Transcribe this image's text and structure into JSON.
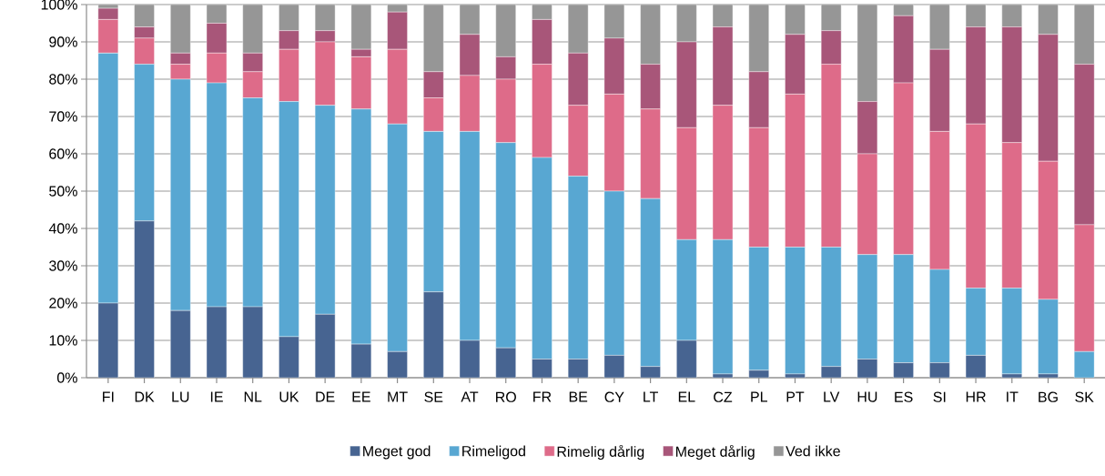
{
  "chart_data": {
    "type": "bar",
    "stacked": true,
    "grid": "y",
    "legend": "bottom",
    "categories": [
      "FI",
      "DK",
      "LU",
      "IE",
      "NL",
      "UK",
      "DE",
      "EE",
      "MT",
      "SE",
      "AT",
      "RO",
      "FR",
      "BE",
      "CY",
      "LT",
      "EL",
      "CZ",
      "PL",
      "PT",
      "LV",
      "HU",
      "ES",
      "SI",
      "HR",
      "IT",
      "BG",
      "SK"
    ],
    "ylim": [
      0,
      100
    ],
    "yticks": [
      {
        "value": 0,
        "label": "0%"
      },
      {
        "value": 10,
        "label": "10%"
      },
      {
        "value": 20,
        "label": "20%"
      },
      {
        "value": 30,
        "label": "30%"
      },
      {
        "value": 40,
        "label": "40%"
      },
      {
        "value": 50,
        "label": "50%"
      },
      {
        "value": 60,
        "label": "60%"
      },
      {
        "value": 70,
        "label": "70%"
      },
      {
        "value": 80,
        "label": "80%"
      },
      {
        "value": 90,
        "label": "90%"
      },
      {
        "value": 100,
        "label": "100%"
      }
    ],
    "series": [
      {
        "name": "Meget god",
        "color": "#476491",
        "values": [
          20,
          42,
          18,
          19,
          19,
          11,
          17,
          9,
          7,
          23,
          10,
          8,
          5,
          5,
          6,
          3,
          10,
          1,
          2,
          1,
          3,
          5,
          4,
          4,
          6,
          1,
          1,
          0
        ]
      },
      {
        "name": "Rimeligod",
        "color": "#58a7d2",
        "values": [
          67,
          42,
          62,
          60,
          56,
          63,
          56,
          63,
          61,
          43,
          56,
          55,
          54,
          49,
          44,
          45,
          27,
          36,
          33,
          34,
          32,
          28,
          29,
          25,
          18,
          23,
          20,
          7
        ]
      },
      {
        "name": "Rimelig dårlig",
        "color": "#de6b89",
        "values": [
          9,
          7,
          4,
          8,
          7,
          14,
          17,
          14,
          20,
          9,
          15,
          17,
          25,
          19,
          26,
          24,
          30,
          36,
          32,
          41,
          49,
          27,
          46,
          37,
          44,
          39,
          37,
          34
        ]
      },
      {
        "name": "Meget dårlig",
        "color": "#a85679",
        "values": [
          3,
          3,
          3,
          8,
          5,
          5,
          3,
          2,
          10,
          7,
          11,
          6,
          12,
          14,
          15,
          12,
          23,
          21,
          15,
          16,
          9,
          14,
          18,
          22,
          26,
          31,
          34,
          43
        ]
      },
      {
        "name": "Ved ikke",
        "color": "#969696",
        "values": [
          1,
          6,
          13,
          5,
          13,
          7,
          7,
          12,
          2,
          18,
          8,
          14,
          4,
          13,
          9,
          16,
          10,
          6,
          18,
          8,
          7,
          26,
          3,
          12,
          6,
          6,
          8,
          16
        ]
      }
    ]
  }
}
